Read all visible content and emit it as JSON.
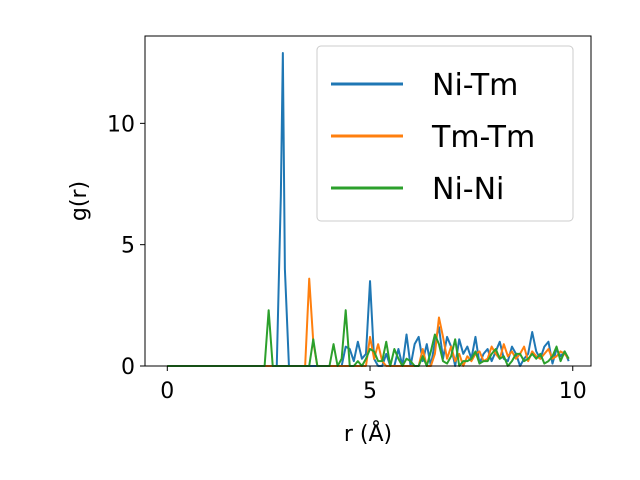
{
  "chart_data": {
    "type": "line",
    "xlabel": "r (Å)",
    "ylabel": "g(r)",
    "xlim": [
      -0.55,
      10.45
    ],
    "ylim": [
      0,
      13.6
    ],
    "xticks": [
      0,
      5,
      10
    ],
    "yticks": [
      0,
      5,
      10
    ],
    "legend_position": "top-right",
    "grid": false,
    "series": [
      {
        "name": "Ni-Tm",
        "color": "#1f77b4",
        "x": [
          0,
          2.7,
          2.8,
          2.85,
          2.9,
          3.0,
          4.3,
          4.4,
          4.5,
          4.6,
          4.7,
          4.8,
          4.9,
          5.0,
          5.1,
          5.2,
          5.3,
          5.4,
          5.5,
          5.6,
          5.7,
          5.8,
          5.9,
          6.0,
          6.1,
          6.2,
          6.3,
          6.4,
          6.5,
          6.6,
          6.7,
          6.8,
          6.9,
          7.0,
          7.1,
          7.2,
          7.3,
          7.4,
          7.5,
          7.6,
          7.7,
          7.8,
          7.9,
          8.0,
          8.1,
          8.2,
          8.3,
          8.4,
          8.5,
          8.6,
          8.7,
          8.8,
          8.9,
          9.0,
          9.1,
          9.2,
          9.3,
          9.4,
          9.5,
          9.6,
          9.7,
          9.8,
          9.9
        ],
        "y": [
          0,
          0,
          7.0,
          12.9,
          4.0,
          0,
          0,
          0.8,
          0.7,
          0.2,
          1.0,
          0.3,
          0.5,
          3.5,
          0.3,
          0,
          0,
          0.5,
          0,
          0,
          0.7,
          0,
          1.3,
          0,
          0.9,
          1.2,
          0.2,
          0.9,
          0,
          1.0,
          1.6,
          0.3,
          1.2,
          0.8,
          0,
          1.1,
          0.5,
          0.8,
          0.3,
          1.2,
          0.1,
          0.5,
          0.7,
          0.2,
          0.6,
          1.0,
          0.3,
          0.2,
          0.8,
          0.5,
          0,
          0.3,
          0.5,
          1.4,
          0.6,
          0.3,
          0.8,
          1.0,
          0.1,
          0.7,
          0.4,
          0.6,
          0.2
        ]
      },
      {
        "name": "Tm-Tm",
        "color": "#ff7f0e",
        "x": [
          0,
          3.4,
          3.5,
          3.6,
          3.7,
          4.9,
          5.0,
          5.1,
          5.2,
          5.3,
          5.4,
          5.5,
          6.2,
          6.3,
          6.4,
          6.5,
          6.6,
          6.7,
          6.8,
          6.9,
          7.0,
          7.1,
          7.2,
          7.3,
          7.4,
          7.5,
          7.6,
          7.7,
          7.8,
          7.9,
          8.0,
          8.1,
          8.2,
          8.3,
          8.4,
          8.5,
          8.6,
          8.7,
          8.8,
          8.9,
          9.0,
          9.1,
          9.2,
          9.3,
          9.4,
          9.5,
          9.6,
          9.7,
          9.8,
          9.9
        ],
        "y": [
          0,
          0,
          3.6,
          1.0,
          0,
          0,
          1.2,
          0.3,
          0.9,
          0.2,
          0,
          0,
          0,
          0.7,
          0,
          0,
          0.5,
          2.0,
          1.2,
          0.3,
          0.8,
          0.2,
          0.5,
          0,
          0.4,
          0.2,
          0.5,
          0.6,
          0.2,
          0.3,
          0.8,
          0.5,
          0.3,
          0.9,
          0.4,
          0.6,
          0.3,
          0.5,
          0.8,
          0.2,
          0.6,
          0.4,
          0.3,
          0.5,
          0.7,
          0.3,
          0.4,
          0.6,
          0.5,
          0.3
        ]
      },
      {
        "name": "Ni-Ni",
        "color": "#2ca02c",
        "x": [
          0,
          2.4,
          2.5,
          2.6,
          3.4,
          3.5,
          3.6,
          3.7,
          3.8,
          3.9,
          4.0,
          4.1,
          4.2,
          4.3,
          4.4,
          4.5,
          4.6,
          4.7,
          4.8,
          4.9,
          5.0,
          5.1,
          5.2,
          5.3,
          5.4,
          5.5,
          5.6,
          5.7,
          5.8,
          5.9,
          6.0,
          6.1,
          6.2,
          6.3,
          6.4,
          6.5,
          6.6,
          6.7,
          6.8,
          6.9,
          7.0,
          7.1,
          7.2,
          7.3,
          7.4,
          7.5,
          7.6,
          7.7,
          7.8,
          7.9,
          8.0,
          8.1,
          8.2,
          8.3,
          8.4,
          8.5,
          8.6,
          8.7,
          8.8,
          8.9,
          9.0,
          9.1,
          9.2,
          9.3,
          9.4,
          9.5,
          9.6,
          9.7,
          9.8,
          9.9
        ],
        "y": [
          0,
          0,
          2.3,
          0,
          0,
          0,
          1.1,
          0,
          0,
          0,
          0,
          0.9,
          0,
          0.3,
          2.3,
          0,
          0,
          0.2,
          0,
          0.3,
          0.7,
          0.6,
          0.2,
          0.2,
          1.0,
          0,
          0.7,
          0.3,
          0,
          0.3,
          0.2,
          0,
          0,
          0.4,
          0,
          0.6,
          1.3,
          0.9,
          0.2,
          0.1,
          0.4,
          1.1,
          0,
          0.2,
          0.2,
          0.3,
          0.6,
          0.1,
          0.2,
          0.2,
          0.5,
          0.7,
          0.3,
          0.4,
          0,
          0.2,
          0.5,
          0.5,
          0.2,
          0.3,
          0.5,
          0.3,
          0.5,
          0.1,
          0.2,
          0.4,
          0.8,
          0.2,
          0.6,
          0.3
        ]
      }
    ]
  }
}
